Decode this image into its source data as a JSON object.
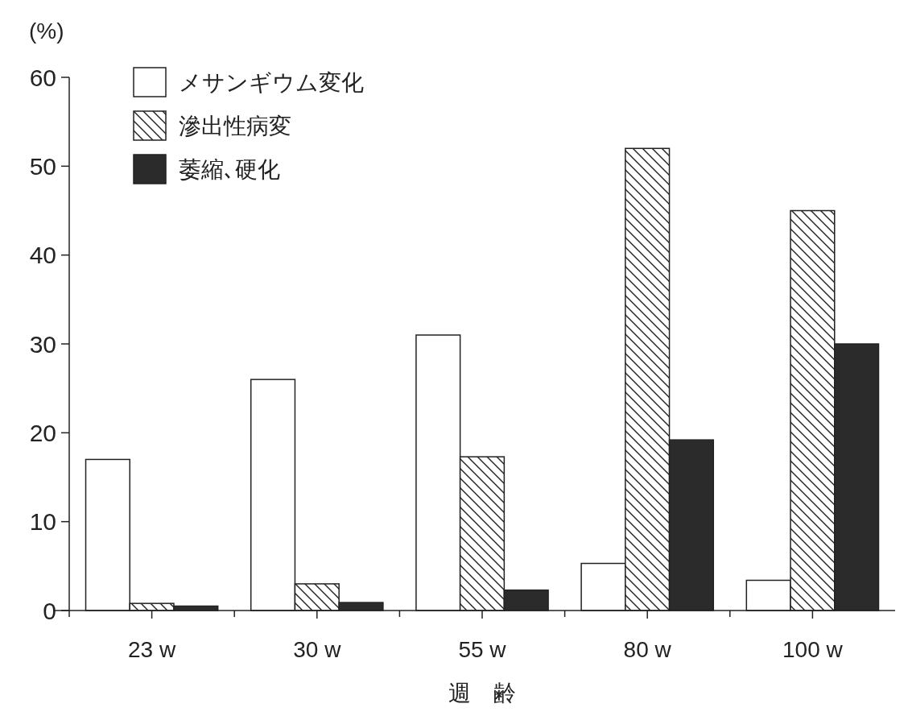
{
  "chart_data": {
    "type": "bar",
    "ylabel": "(%)",
    "xlabel": "週　齢",
    "categories": [
      "23 w",
      "30 w",
      "55 w",
      "80 w",
      "100 w"
    ],
    "series": [
      {
        "name": "メサンギウム変化",
        "color": "#ffffff",
        "values": [
          17,
          26,
          31,
          5.3,
          3.4
        ]
      },
      {
        "name": "滲出性病変",
        "color": "#222222",
        "values": [
          0.8,
          3,
          17.3,
          52,
          45
        ]
      },
      {
        "name": "萎縮､硬化",
        "color": "#2b2b2b",
        "values": [
          0.5,
          0.9,
          2.3,
          19.2,
          30
        ]
      }
    ],
    "ylim": [
      0,
      60
    ],
    "yticks": [
      0,
      10,
      20,
      30,
      40,
      50,
      60
    ],
    "legend": "top left",
    "grid": false
  }
}
